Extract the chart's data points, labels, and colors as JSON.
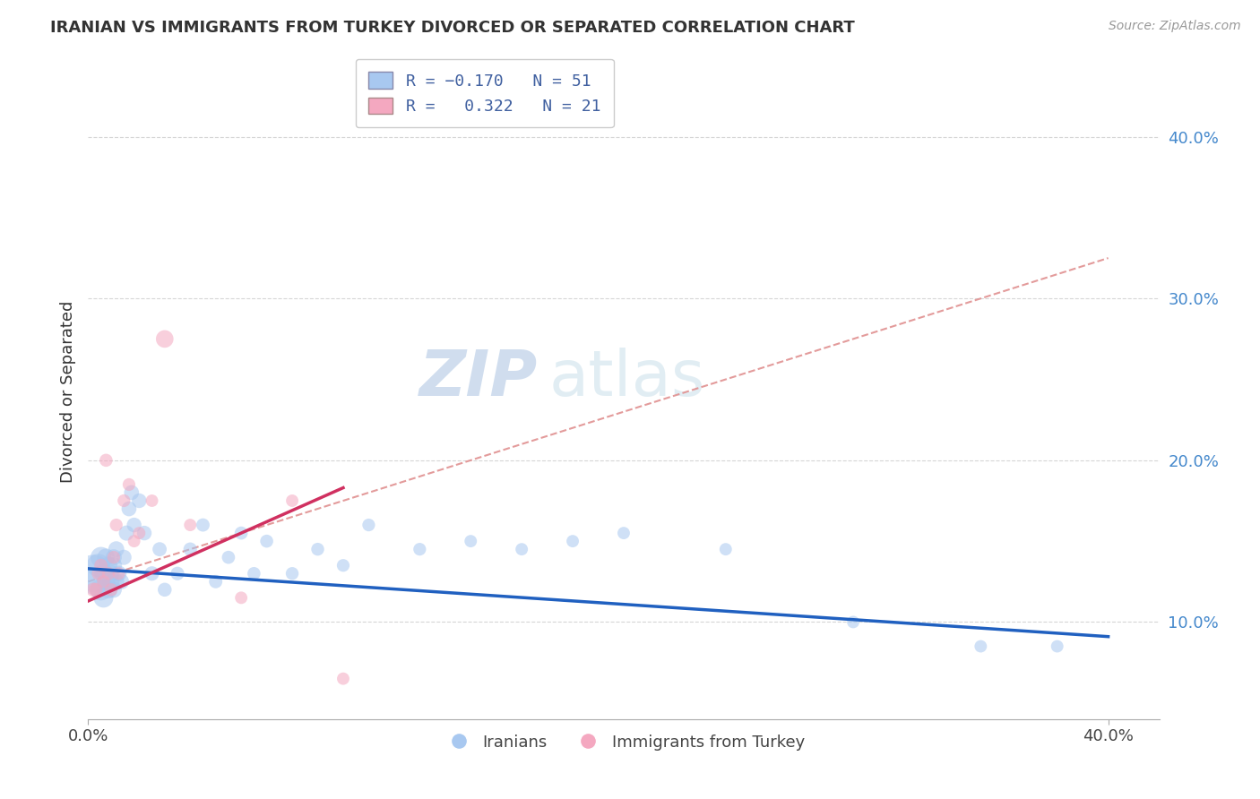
{
  "title": "IRANIAN VS IMMIGRANTS FROM TURKEY DIVORCED OR SEPARATED CORRELATION CHART",
  "source": "Source: ZipAtlas.com",
  "ylabel": "Divorced or Separated",
  "ytick_vals": [
    0.1,
    0.2,
    0.3,
    0.4
  ],
  "ytick_labels": [
    "10.0%",
    "20.0%",
    "30.0%",
    "40.0%"
  ],
  "xtick_vals": [
    0.0,
    0.4
  ],
  "xtick_labels": [
    "0.0%",
    "40.0%"
  ],
  "xrange": [
    0.0,
    0.42
  ],
  "yrange": [
    0.04,
    0.445
  ],
  "legend_label1": "Iranians",
  "legend_label2": "Immigrants from Turkey",
  "R1": -0.17,
  "N1": 51,
  "R2": 0.322,
  "N2": 21,
  "blue_color": "#A8C8F0",
  "pink_color": "#F4A8C0",
  "blue_line_color": "#2060C0",
  "pink_line_color": "#D03060",
  "dashed_line_color": "#E09090",
  "watermark_zip": "ZIP",
  "watermark_atlas": "atlas",
  "blue_scatter_x": [
    0.002,
    0.003,
    0.004,
    0.005,
    0.005,
    0.006,
    0.006,
    0.007,
    0.007,
    0.008,
    0.008,
    0.009,
    0.009,
    0.01,
    0.01,
    0.01,
    0.011,
    0.011,
    0.012,
    0.013,
    0.014,
    0.015,
    0.016,
    0.017,
    0.018,
    0.02,
    0.022,
    0.025,
    0.028,
    0.03,
    0.035,
    0.04,
    0.045,
    0.05,
    0.055,
    0.06,
    0.065,
    0.07,
    0.08,
    0.09,
    0.1,
    0.11,
    0.13,
    0.15,
    0.17,
    0.19,
    0.21,
    0.25,
    0.3,
    0.35,
    0.38
  ],
  "blue_scatter_y": [
    0.13,
    0.125,
    0.135,
    0.12,
    0.14,
    0.115,
    0.13,
    0.125,
    0.14,
    0.12,
    0.135,
    0.125,
    0.13,
    0.135,
    0.12,
    0.14,
    0.125,
    0.145,
    0.13,
    0.125,
    0.14,
    0.155,
    0.17,
    0.18,
    0.16,
    0.175,
    0.155,
    0.13,
    0.145,
    0.12,
    0.13,
    0.145,
    0.16,
    0.125,
    0.14,
    0.155,
    0.13,
    0.15,
    0.13,
    0.145,
    0.135,
    0.16,
    0.145,
    0.15,
    0.145,
    0.15,
    0.155,
    0.145,
    0.1,
    0.085,
    0.085
  ],
  "blue_scatter_sizes": [
    900,
    500,
    350,
    300,
    280,
    250,
    220,
    200,
    200,
    200,
    200,
    180,
    180,
    180,
    170,
    170,
    165,
    165,
    160,
    155,
    150,
    150,
    145,
    145,
    140,
    140,
    140,
    135,
    130,
    125,
    120,
    120,
    115,
    115,
    112,
    112,
    110,
    110,
    108,
    108,
    105,
    105,
    105,
    100,
    100,
    100,
    100,
    100,
    100,
    100,
    100
  ],
  "pink_scatter_x": [
    0.002,
    0.003,
    0.004,
    0.005,
    0.006,
    0.007,
    0.008,
    0.009,
    0.01,
    0.011,
    0.012,
    0.014,
    0.016,
    0.018,
    0.02,
    0.025,
    0.03,
    0.04,
    0.06,
    0.08,
    0.1
  ],
  "pink_scatter_y": [
    0.12,
    0.12,
    0.13,
    0.135,
    0.125,
    0.2,
    0.13,
    0.12,
    0.14,
    0.16,
    0.13,
    0.175,
    0.185,
    0.15,
    0.155,
    0.175,
    0.275,
    0.16,
    0.115,
    0.175,
    0.065
  ],
  "pink_scatter_sizes": [
    130,
    120,
    115,
    115,
    110,
    110,
    110,
    108,
    108,
    105,
    105,
    105,
    105,
    100,
    100,
    100,
    200,
    100,
    100,
    100,
    100
  ],
  "blue_line_x0": 0.0,
  "blue_line_x1": 0.4,
  "blue_line_y0": 0.133,
  "blue_line_y1": 0.091,
  "pink_line_x0": 0.0,
  "pink_line_x1": 0.1,
  "pink_line_y0": 0.113,
  "pink_line_y1": 0.183,
  "dash_line_x0": 0.0,
  "dash_line_x1": 0.4,
  "dash_line_y0": 0.125,
  "dash_line_y1": 0.325
}
